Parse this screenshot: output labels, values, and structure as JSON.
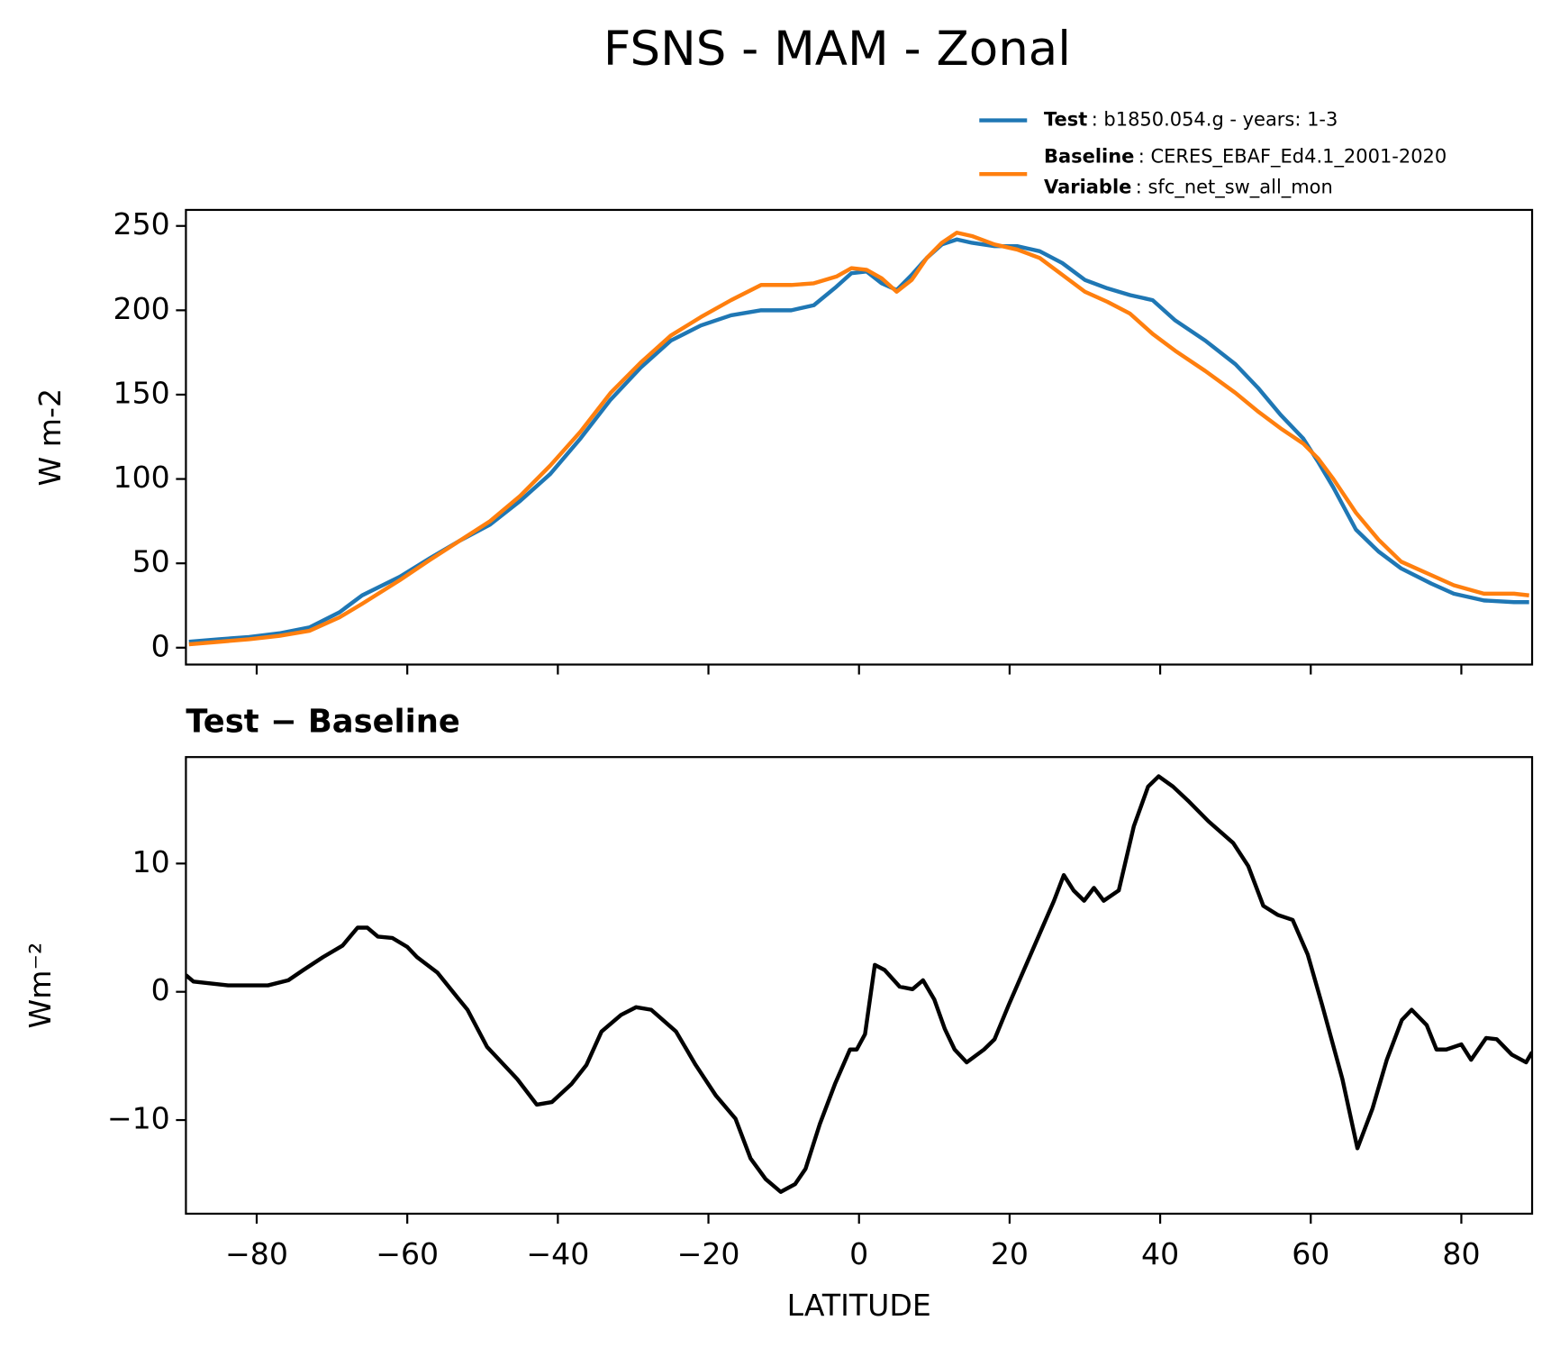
{
  "title": "FSNS - MAM - Zonal",
  "chart_data": [
    {
      "type": "line",
      "ylabel": "W m-2",
      "legend": "upper right",
      "x": [
        -89,
        -85,
        -81,
        -77,
        -73,
        -69,
        -66,
        -61,
        -57,
        -53,
        -49,
        -45,
        -41,
        -37,
        -33,
        -29,
        -25,
        -21,
        -17,
        -13,
        -9,
        -6,
        -3,
        -1,
        1,
        3,
        5,
        7,
        9,
        11,
        13,
        15,
        18,
        21,
        24,
        27,
        30,
        33,
        36,
        39,
        42,
        46,
        50,
        53,
        56,
        59,
        61,
        63,
        66,
        69,
        72,
        76,
        79,
        83,
        87,
        89
      ],
      "series": [
        {
          "name": "Test",
          "label": ": b1850.054.g - years: 1-3",
          "color": "#1f77b4",
          "values": [
            3.5,
            5,
            6.3,
            8.5,
            12,
            21,
            31,
            42,
            53,
            63.5,
            73,
            87,
            103,
            124,
            147,
            166,
            182,
            191,
            197,
            200,
            200,
            203,
            214,
            222,
            223,
            216,
            212,
            221,
            231,
            239,
            242,
            240,
            238,
            238,
            235,
            228,
            218,
            213,
            209,
            206,
            194,
            182,
            168,
            154,
            138,
            124,
            110,
            95,
            70,
            57,
            47,
            38,
            32,
            28,
            27,
            27
          ]
        },
        {
          "name": "Baseline",
          "label": ": CERES_EBAF_Ed4.1_2001-2020",
          "color": "#ff7f0e",
          "values": [
            2,
            3.5,
            5,
            7,
            10,
            18,
            26,
            40,
            52,
            63.5,
            75,
            90,
            108,
            128,
            151,
            169,
            185,
            196,
            206,
            215,
            215,
            216,
            220,
            225,
            224,
            219,
            211,
            218,
            231,
            240,
            246,
            244,
            239,
            236,
            231,
            221,
            211,
            205,
            198,
            186,
            176,
            164,
            151,
            140,
            130,
            121,
            112,
            100,
            80,
            64,
            51,
            43,
            37,
            32,
            32,
            31
          ]
        }
      ],
      "variable": {
        "name": "Variable",
        "label": ": sfc_net_sw_all_mon"
      },
      "xlim": [
        -89.4,
        89.4
      ],
      "ylim": [
        -10,
        259.5
      ],
      "xticks": [
        -80,
        -60,
        -40,
        -20,
        0,
        20,
        40,
        60,
        80
      ],
      "yticks": [
        0,
        50,
        100,
        150,
        200,
        250
      ]
    },
    {
      "type": "line",
      "title": "Test − Baseline",
      "xlabel": "LATITUDE",
      "ylabel": "Wm⁻²",
      "x": [
        -89.4,
        -88.4,
        -83.8,
        -78.5,
        -75.8,
        -73.8,
        -71.2,
        -68.6,
        -66.6,
        -65.3,
        -63.9,
        -62,
        -60,
        -58.7,
        -56,
        -53.4,
        -52,
        -49.4,
        -45.4,
        -42.8,
        -40.8,
        -38.2,
        -36.2,
        -34.2,
        -31.6,
        -29.6,
        -27.6,
        -24.3,
        -21.7,
        -19,
        -16.4,
        -14.4,
        -12.4,
        -10.4,
        -8.5,
        -7.1,
        -5.2,
        -3.2,
        -1.2,
        -0.3,
        0.8,
        2.1,
        3.4,
        5.4,
        7.1,
        8.5,
        10,
        11.4,
        12.7,
        14.3,
        16.6,
        18,
        19.9,
        21.9,
        23.9,
        25.9,
        27.2,
        28.5,
        29.9,
        31.2,
        32.5,
        34.5,
        36.5,
        38.4,
        39.8,
        41.7,
        43.7,
        46.4,
        49.7,
        51.7,
        53.7,
        55.6,
        57.6,
        59.6,
        61.5,
        64.2,
        66.2,
        68.2,
        70.1,
        72.1,
        73.4,
        75.4,
        76.7,
        78,
        80,
        81.3,
        83.3,
        84.7,
        86.7,
        88.6,
        89.4
      ],
      "series": [
        {
          "name": "Test − Baseline",
          "color": "#000000",
          "values": [
            1.3,
            0.8,
            0.5,
            0.5,
            0.9,
            1.7,
            2.7,
            3.6,
            5,
            5,
            4.3,
            4.2,
            3.5,
            2.7,
            1.5,
            -0.4,
            -1.4,
            -4.3,
            -6.8,
            -8.8,
            -8.6,
            -7.2,
            -5.7,
            -3.1,
            -1.8,
            -1.2,
            -1.4,
            -3.1,
            -5.7,
            -8.1,
            -9.9,
            -13,
            -14.6,
            -15.6,
            -15,
            -13.8,
            -10.3,
            -7.2,
            -4.5,
            -4.5,
            -3.3,
            2.1,
            1.7,
            0.4,
            0.2,
            0.9,
            -0.6,
            -2.9,
            -4.5,
            -5.5,
            -4.5,
            -3.7,
            -1,
            1.7,
            4.4,
            7.1,
            9.1,
            7.9,
            7.1,
            8.1,
            7.1,
            7.9,
            12.9,
            16,
            16.8,
            16,
            14.9,
            13.3,
            11.6,
            9.8,
            6.7,
            6,
            5.6,
            2.9,
            -1,
            -6.8,
            -12.2,
            -9.1,
            -5.3,
            -2.2,
            -1.4,
            -2.6,
            -4.5,
            -4.5,
            -4.1,
            -5.3,
            -3.6,
            -3.7,
            -4.9,
            -5.5,
            -4.7
          ]
        }
      ],
      "xlim": [
        -89.4,
        89.4
      ],
      "ylim": [
        -17.3,
        18.3
      ],
      "xticks": [
        {
          "value": -80,
          "label": "−80"
        },
        {
          "value": -60,
          "label": "−60"
        },
        {
          "value": -40,
          "label": "−40"
        },
        {
          "value": -20,
          "label": "−20"
        },
        0,
        20,
        40,
        60,
        80
      ],
      "yticks": [
        {
          "value": -10,
          "label": "−10"
        },
        0,
        10
      ]
    }
  ]
}
